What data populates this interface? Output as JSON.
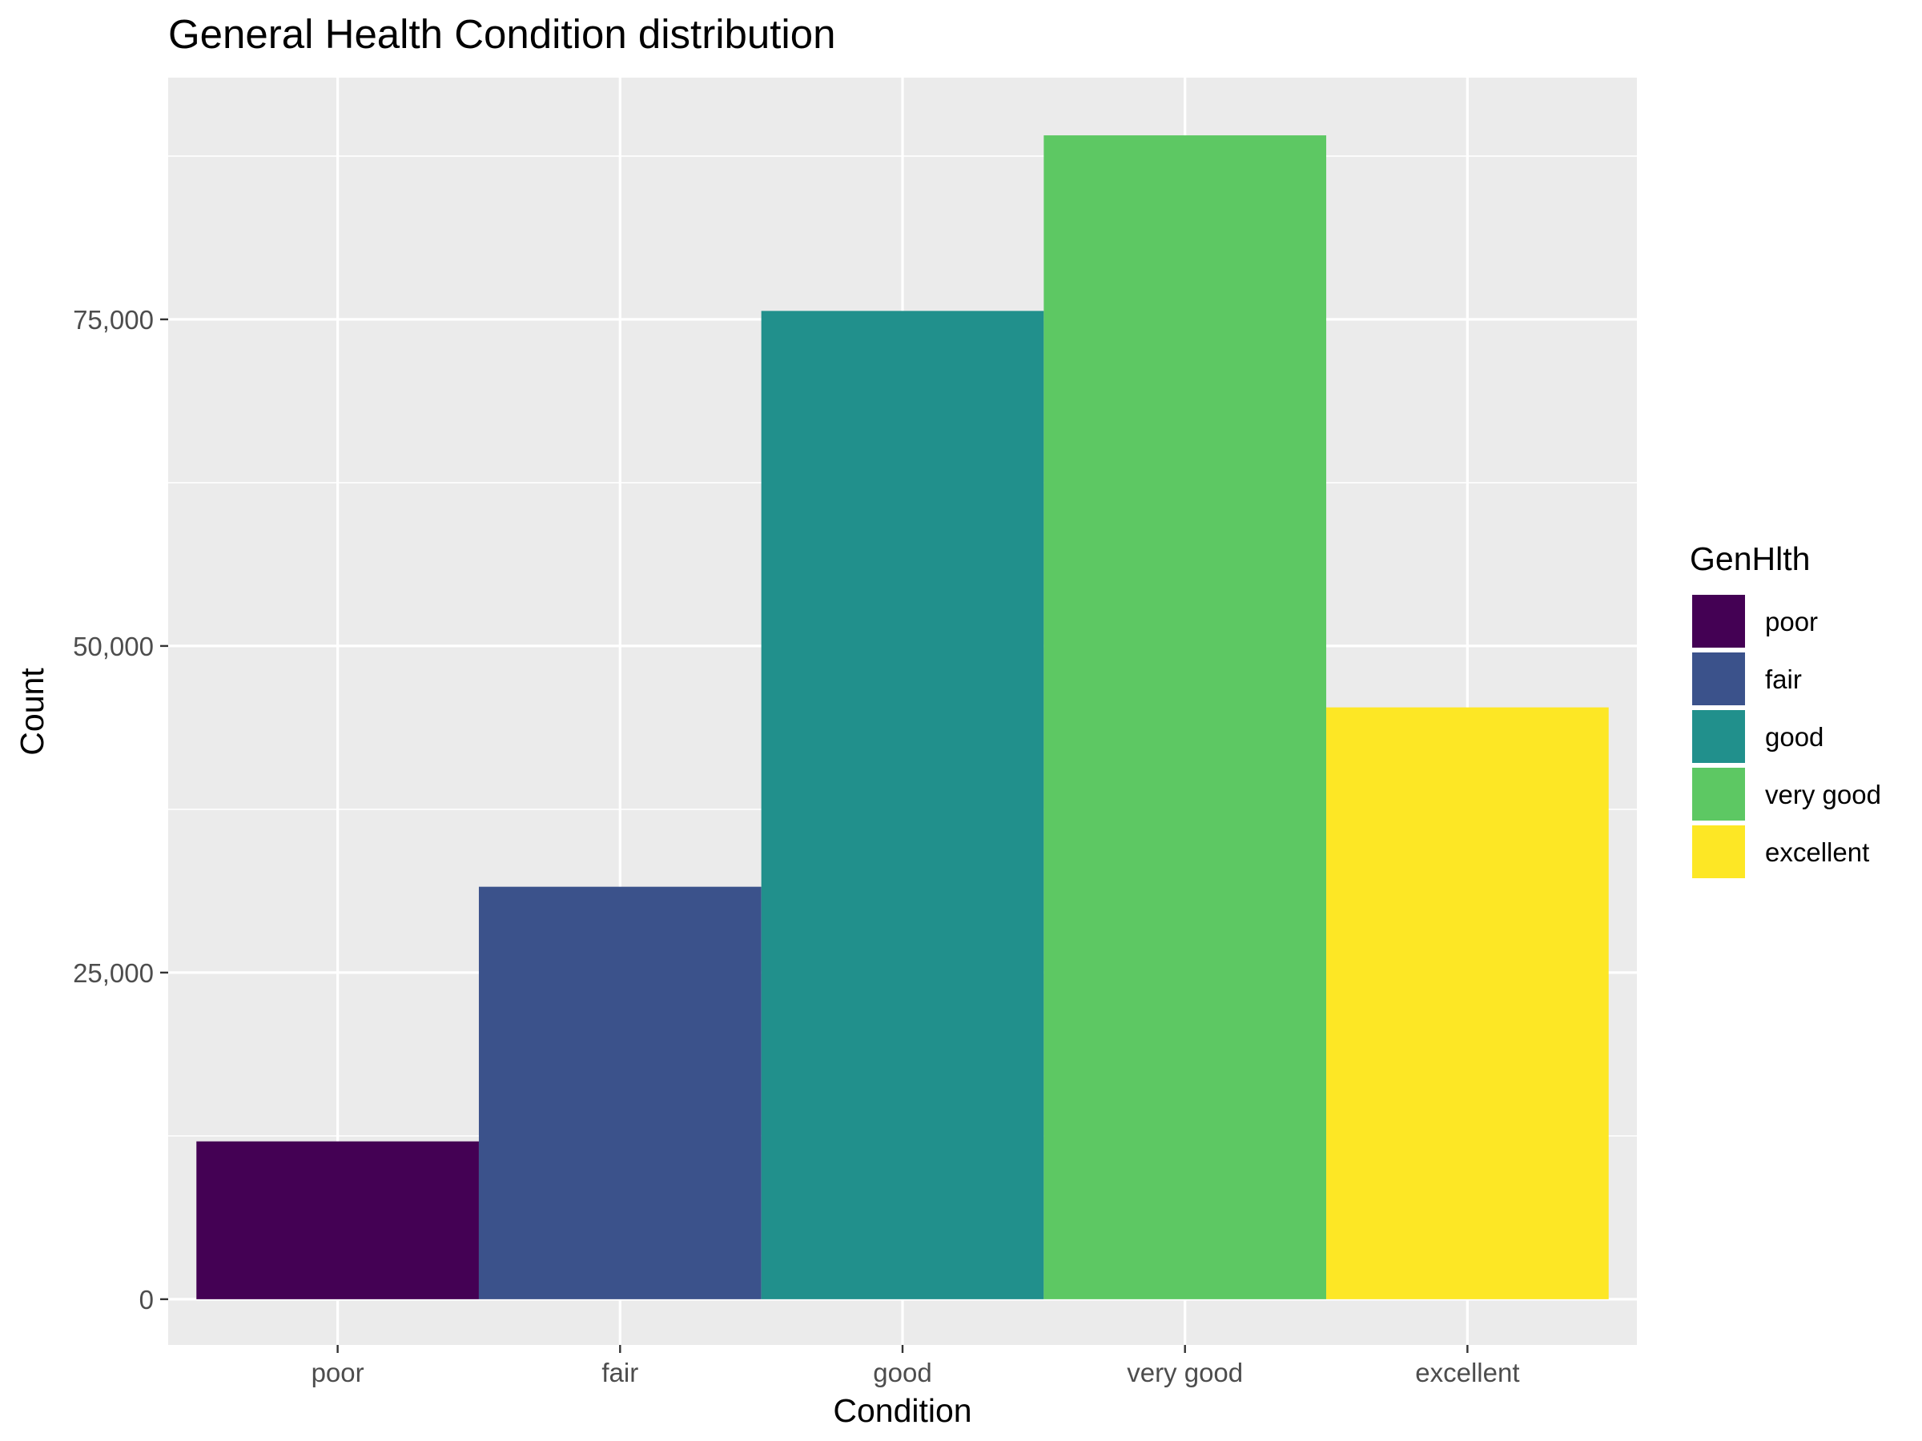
{
  "chart_data": {
    "type": "bar",
    "title": "General Health Condition distribution",
    "xlabel": "Condition",
    "ylabel": "Count",
    "categories": [
      "poor",
      "fair",
      "good",
      "very good",
      "excellent"
    ],
    "values": [
      12081,
      31570,
      75646,
      89084,
      45299
    ],
    "colors": [
      "#440154",
      "#3b528b",
      "#21908c",
      "#5dc863",
      "#fde725"
    ],
    "ylim": [
      -3500,
      93500
    ],
    "yticks": [
      0,
      25000,
      50000,
      75000
    ],
    "ytick_labels": [
      "0",
      "25,000",
      "50,000",
      "75,000"
    ],
    "grid": true,
    "legend": {
      "title": "GenHlth",
      "position": "right",
      "entries": [
        "poor",
        "fair",
        "good",
        "very good",
        "excellent"
      ]
    }
  }
}
